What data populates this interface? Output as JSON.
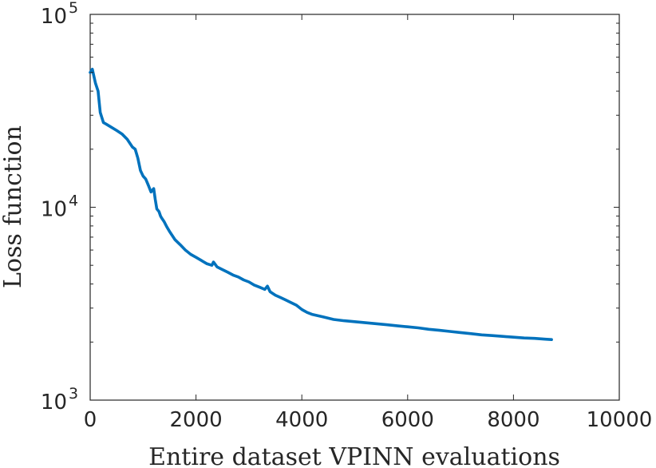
{
  "chart_data": {
    "type": "line",
    "xlabel": "Entire dataset VPINN evaluations",
    "ylabel": "Loss function",
    "xlim": [
      0,
      10000
    ],
    "ylim": [
      1000,
      100000
    ],
    "yscale": "log",
    "grid": false,
    "box": true,
    "x_ticks": [
      {
        "value": 0,
        "label": "0"
      },
      {
        "value": 2000,
        "label": "2000"
      },
      {
        "value": 4000,
        "label": "4000"
      },
      {
        "value": 6000,
        "label": "6000"
      },
      {
        "value": 8000,
        "label": "8000"
      },
      {
        "value": 10000,
        "label": "10000"
      }
    ],
    "y_ticks": [
      {
        "value": 1000,
        "base": "10",
        "exp": "3"
      },
      {
        "value": 10000,
        "base": "10",
        "exp": "4"
      },
      {
        "value": 100000,
        "base": "10",
        "exp": "5"
      }
    ],
    "y_minor_ticks": [
      2000,
      3000,
      4000,
      5000,
      6000,
      7000,
      8000,
      9000,
      20000,
      30000,
      40000,
      50000,
      60000,
      70000,
      80000,
      90000
    ],
    "x_minor_ticks": [
      1000,
      3000,
      5000,
      7000,
      9000
    ],
    "series": [
      {
        "color": "#0072BD",
        "x": [
          0,
          40,
          100,
          150,
          190,
          250,
          300,
          400,
          500,
          600,
          700,
          800,
          850,
          900,
          950,
          1000,
          1050,
          1100,
          1150,
          1200,
          1230,
          1260,
          1300,
          1330,
          1350,
          1400,
          1450,
          1500,
          1600,
          1700,
          1800,
          1900,
          2000,
          2100,
          2200,
          2300,
          2330,
          2400,
          2500,
          2600,
          2700,
          2800,
          2900,
          3000,
          3100,
          3200,
          3300,
          3350,
          3400,
          3500,
          3600,
          3700,
          3800,
          3900,
          4000,
          4100,
          4200,
          4400,
          4600,
          4800,
          5000,
          5200,
          5400,
          5600,
          5800,
          6000,
          6200,
          6400,
          6600,
          6800,
          7000,
          7200,
          7400,
          7600,
          7800,
          8000,
          8200,
          8400,
          8600,
          8720
        ],
        "y": [
          50000,
          52000,
          44000,
          40000,
          31000,
          27500,
          27000,
          26000,
          25000,
          24000,
          22500,
          20500,
          20000,
          18000,
          15500,
          14500,
          14000,
          13000,
          12000,
          12500,
          11000,
          9800,
          9500,
          9000,
          8800,
          8400,
          7900,
          7500,
          6800,
          6400,
          6000,
          5700,
          5500,
          5300,
          5100,
          5000,
          5200,
          4900,
          4750,
          4600,
          4450,
          4350,
          4200,
          4100,
          3950,
          3850,
          3750,
          3900,
          3650,
          3500,
          3400,
          3300,
          3200,
          3100,
          2950,
          2850,
          2780,
          2700,
          2620,
          2580,
          2550,
          2520,
          2490,
          2460,
          2430,
          2400,
          2370,
          2330,
          2300,
          2270,
          2240,
          2210,
          2180,
          2160,
          2140,
          2120,
          2100,
          2090,
          2070,
          2060
        ]
      }
    ]
  }
}
